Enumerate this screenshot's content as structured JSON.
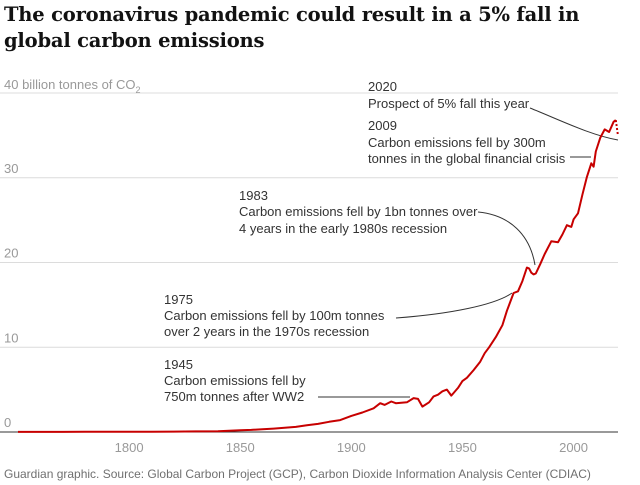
{
  "title": "The coronavirus pandemic could result in a 5% fall in global carbon emissions",
  "source": "Guardian graphic. Source: Global Carbon Project (GCP), Carbon Dioxide Information Analysis Center (CDIAC)",
  "colors": {
    "line": "#c70000",
    "grid": "#dcdcdc",
    "axis_text": "#999999",
    "annotation": "#333333"
  },
  "chart_data": {
    "type": "line",
    "ylabel": "40 billion tonnes of CO",
    "ylabel_sub": "2",
    "xlim": [
      1750,
      2020
    ],
    "ylim": [
      0,
      40
    ],
    "x_ticks": [
      1800,
      1850,
      1900,
      1950,
      2000
    ],
    "y_ticks": [
      0,
      10,
      20,
      30
    ],
    "grid": true,
    "series": [
      {
        "x": [
          1750,
          1760,
          1770,
          1780,
          1790,
          1800,
          1810,
          1820,
          1830,
          1840,
          1850,
          1855,
          1860,
          1865,
          1870,
          1875,
          1880,
          1885,
          1890,
          1895,
          1900,
          1905,
          1910,
          1913,
          1915,
          1918,
          1920,
          1925,
          1928,
          1930,
          1932,
          1935,
          1937,
          1939,
          1941,
          1943,
          1945,
          1946,
          1948,
          1950,
          1952,
          1955,
          1958,
          1960,
          1962,
          1965,
          1968,
          1970,
          1973,
          1975,
          1977,
          1979,
          1980,
          1981,
          1982,
          1983,
          1985,
          1987,
          1990,
          1993,
          1995,
          1997,
          1999,
          2000,
          2002,
          2004,
          2006,
          2008,
          2009,
          2010,
          2012,
          2014,
          2016,
          2018,
          2019
        ],
        "y": [
          0.01,
          0.01,
          0.01,
          0.02,
          0.03,
          0.03,
          0.04,
          0.05,
          0.07,
          0.1,
          0.2,
          0.25,
          0.33,
          0.4,
          0.5,
          0.6,
          0.8,
          0.95,
          1.2,
          1.4,
          1.9,
          2.3,
          2.8,
          3.4,
          3.2,
          3.6,
          3.4,
          3.5,
          4.0,
          3.9,
          3.0,
          3.5,
          4.2,
          4.4,
          4.8,
          5.0,
          4.3,
          4.6,
          5.2,
          6.0,
          6.4,
          7.3,
          8.3,
          9.3,
          10.0,
          11.2,
          12.6,
          14.3,
          16.4,
          16.6,
          17.8,
          19.4,
          19.3,
          18.8,
          18.6,
          18.7,
          19.8,
          21.0,
          22.5,
          22.4,
          23.3,
          24.4,
          24.2,
          25.1,
          25.8,
          28.0,
          30.1,
          31.7,
          31.3,
          33.1,
          34.7,
          35.7,
          35.4,
          36.6,
          36.8
        ]
      },
      {
        "x": [
          2019,
          2020
        ],
        "y": [
          36.8,
          34.96
        ],
        "style": "dotted"
      }
    ],
    "annotations": [
      {
        "year": "2020",
        "text": [
          "Prospect of 5% fall this year"
        ]
      },
      {
        "year": "2009",
        "text": [
          "Carbon emissions fell by 300m",
          "tonnes in the global financial crisis"
        ]
      },
      {
        "year": "1983",
        "text": [
          "Carbon emissions fell by 1bn tonnes over",
          "4 years in the early 1980s recession"
        ]
      },
      {
        "year": "1975",
        "text": [
          "Carbon emissions fell by 100m tonnes",
          "over 2 years in the 1970s recession"
        ]
      },
      {
        "year": "1945",
        "text": [
          "Carbon emissions fell by",
          "750m tonnes after WW2"
        ]
      }
    ]
  }
}
